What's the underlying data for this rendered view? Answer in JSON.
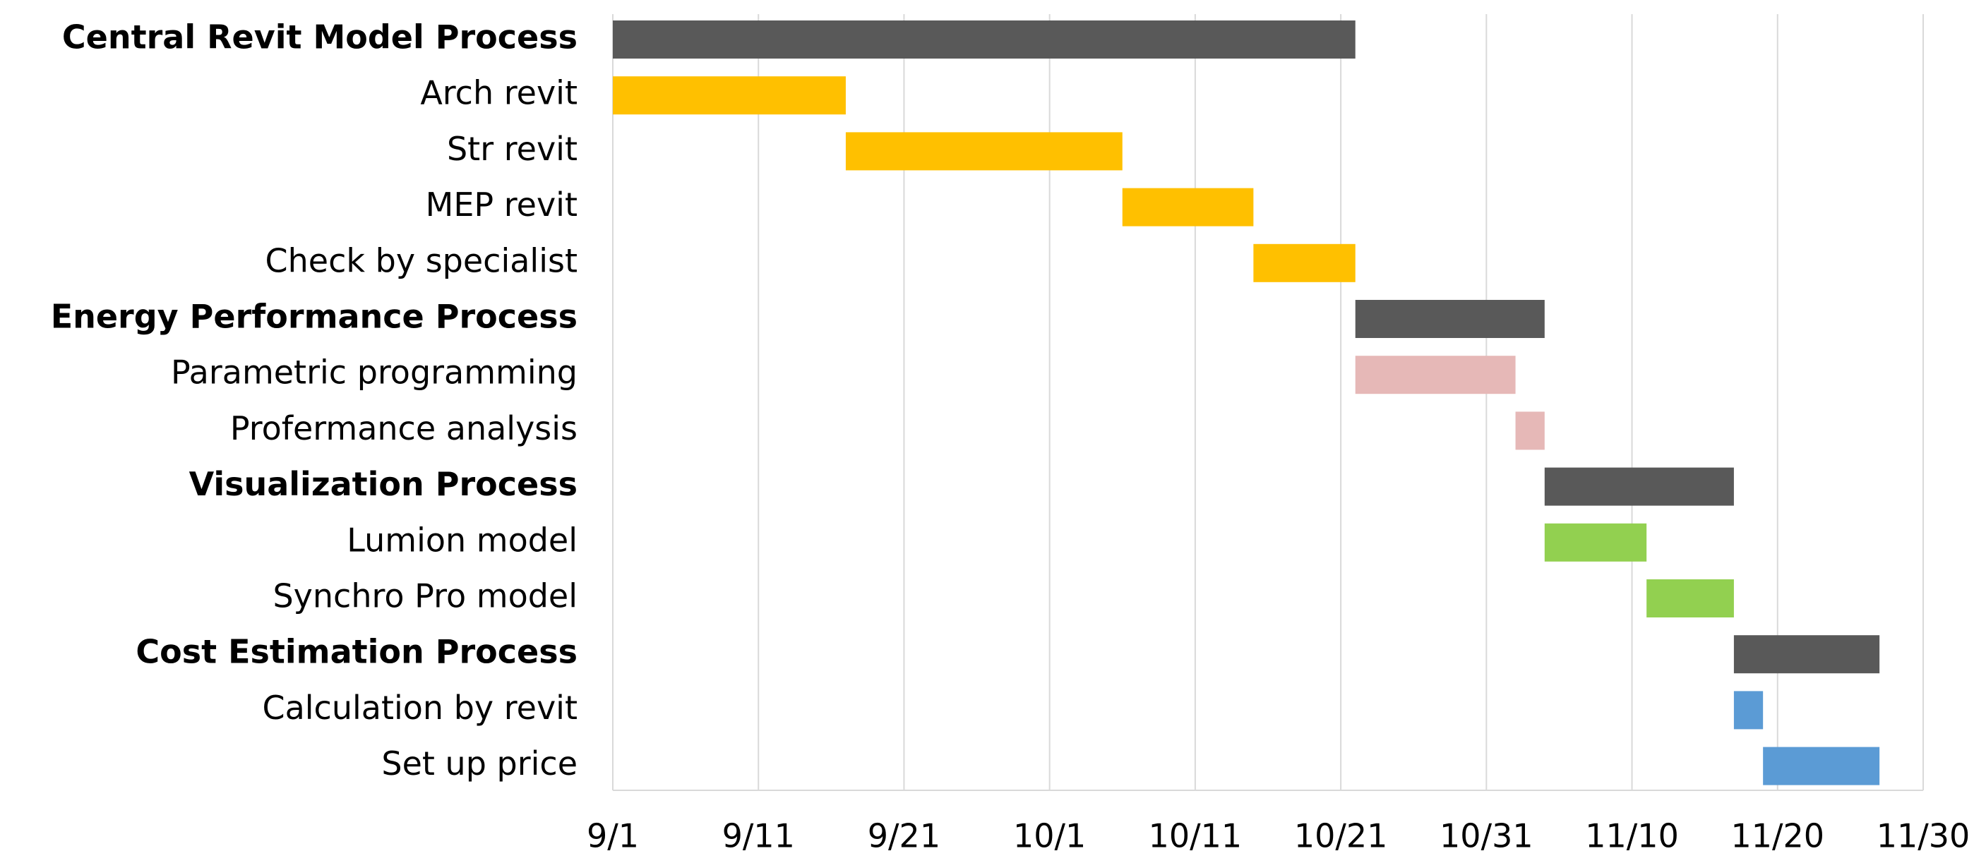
{
  "chart_data": {
    "type": "gantt",
    "tasks": [
      {
        "name": "Central Revit Model Process",
        "start": 0,
        "end": 51,
        "color": "#595959",
        "group": true
      },
      {
        "name": "Arch revit",
        "start": 0,
        "end": 16,
        "color": "#ffc000",
        "group": false
      },
      {
        "name": "Str revit",
        "start": 16,
        "end": 35,
        "color": "#ffc000",
        "group": false
      },
      {
        "name": "MEP revit",
        "start": 35,
        "end": 44,
        "color": "#ffc000",
        "group": false
      },
      {
        "name": "Check by specialist",
        "start": 44,
        "end": 51,
        "color": "#ffc000",
        "group": false
      },
      {
        "name": "Energy Performance Process",
        "start": 51,
        "end": 64,
        "color": "#595959",
        "group": true
      },
      {
        "name": "Parametric programming",
        "start": 51,
        "end": 62,
        "color": "#e6b8b7",
        "group": false
      },
      {
        "name": "Profermance analysis",
        "start": 62,
        "end": 64,
        "color": "#e6b8b7",
        "group": false
      },
      {
        "name": "Visualization Process",
        "start": 64,
        "end": 77,
        "color": "#595959",
        "group": true
      },
      {
        "name": "Lumion model",
        "start": 64,
        "end": 71,
        "color": "#92d050",
        "group": false
      },
      {
        "name": "Synchro Pro model",
        "start": 71,
        "end": 77,
        "color": "#92d050",
        "group": false
      },
      {
        "name": "Cost Estimation Process",
        "start": 77,
        "end": 87,
        "color": "#595959",
        "group": true
      },
      {
        "name": "Calculation by revit",
        "start": 77,
        "end": 79,
        "color": "#5b9bd5",
        "group": false
      },
      {
        "name": "Set up price",
        "start": 79,
        "end": 87,
        "color": "#5b9bd5",
        "group": false
      }
    ],
    "xlim": [
      0,
      90
    ],
    "xticks": [
      {
        "value": 0,
        "label": "9/1"
      },
      {
        "value": 10,
        "label": "9/11"
      },
      {
        "value": 20,
        "label": "9/21"
      },
      {
        "value": 30,
        "label": "10/1"
      },
      {
        "value": 40,
        "label": "10/11"
      },
      {
        "value": 50,
        "label": "10/21"
      },
      {
        "value": 60,
        "label": "10/31"
      },
      {
        "value": 70,
        "label": "11/10"
      },
      {
        "value": 80,
        "label": "11/20"
      },
      {
        "value": 90,
        "label": "11/30"
      }
    ],
    "grid": true,
    "group_label_color": "#c00000"
  }
}
